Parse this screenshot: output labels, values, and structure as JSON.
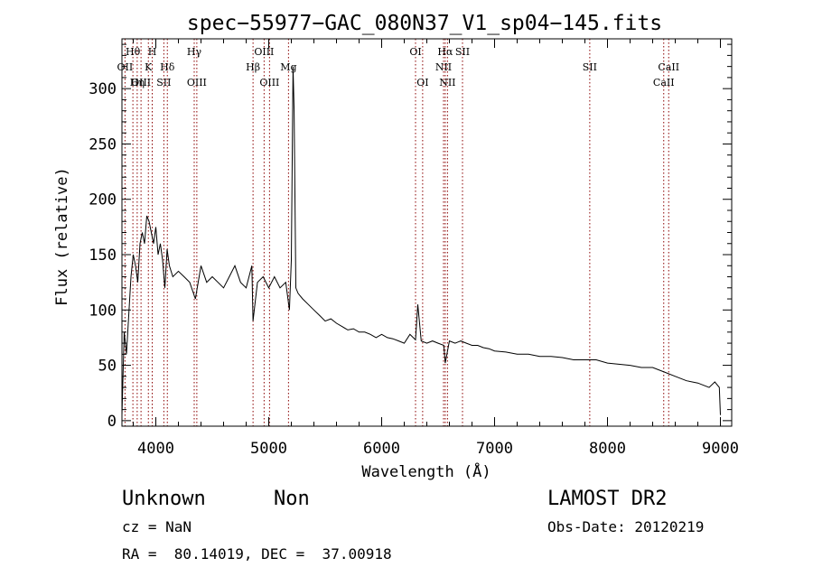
{
  "chart_data": {
    "type": "line",
    "title": "spec−55977−GAC_080N37_V1_sp04−145.fits",
    "xlabel": "Wavelength (Å)",
    "ylabel": "Flux (relative)",
    "xlim": [
      3700,
      9100
    ],
    "ylim": [
      -5,
      345
    ],
    "xticks": [
      4000,
      5000,
      6000,
      7000,
      8000,
      9000
    ],
    "yticks": [
      0,
      50,
      100,
      150,
      200,
      250,
      300
    ],
    "grid": false,
    "series": [
      {
        "x": [
          3700,
          3720,
          3740,
          3760,
          3780,
          3800,
          3820,
          3840,
          3860,
          3880,
          3900,
          3920,
          3940,
          3960,
          3980,
          4000,
          4020,
          4040,
          4060,
          4080,
          4100,
          4120,
          4150,
          4200,
          4250,
          4300,
          4350,
          4400,
          4450,
          4500,
          4550,
          4600,
          4650,
          4700,
          4750,
          4800,
          4850,
          4861,
          4900,
          4950,
          5000,
          5050,
          5100,
          5150,
          5183,
          5200,
          5215,
          5225,
          5240,
          5260,
          5300,
          5350,
          5400,
          5450,
          5500,
          5550,
          5600,
          5650,
          5700,
          5750,
          5800,
          5850,
          5900,
          5950,
          6000,
          6050,
          6100,
          6150,
          6200,
          6250,
          6300,
          6320,
          6350,
          6400,
          6450,
          6500,
          6550,
          6563,
          6600,
          6650,
          6700,
          6750,
          6800,
          6850,
          6900,
          6950,
          7000,
          7100,
          7200,
          7300,
          7400,
          7500,
          7600,
          7700,
          7800,
          7900,
          8000,
          8100,
          8200,
          8300,
          8400,
          8500,
          8600,
          8700,
          8800,
          8900,
          8950,
          8990,
          9000
        ],
        "values": [
          5,
          80,
          60,
          95,
          130,
          150,
          140,
          125,
          160,
          170,
          160,
          185,
          180,
          170,
          160,
          175,
          150,
          160,
          145,
          120,
          155,
          140,
          130,
          135,
          130,
          125,
          110,
          140,
          125,
          130,
          125,
          120,
          130,
          140,
          125,
          120,
          140,
          90,
          125,
          130,
          120,
          130,
          120,
          125,
          100,
          145,
          320,
          280,
          120,
          115,
          110,
          105,
          100,
          95,
          90,
          92,
          88,
          85,
          82,
          83,
          80,
          80,
          78,
          75,
          78,
          75,
          74,
          72,
          70,
          78,
          73,
          105,
          72,
          70,
          72,
          70,
          68,
          52,
          72,
          70,
          72,
          70,
          68,
          68,
          66,
          65,
          63,
          62,
          60,
          60,
          58,
          58,
          57,
          55,
          55,
          55,
          52,
          51,
          50,
          48,
          48,
          44,
          40,
          36,
          34,
          30,
          35,
          30,
          5
        ]
      }
    ],
    "lines": [
      {
        "label": "Hθ",
        "wavelength": 3797,
        "row": 1
      },
      {
        "label": "OII",
        "wavelength": 3727,
        "row": 2
      },
      {
        "label": "OIII",
        "wavelength": 3869,
        "row": 3
      },
      {
        "label": "Hη",
        "wavelength": 3835,
        "row": 3
      },
      {
        "label": "H",
        "wavelength": 3968,
        "row": 1
      },
      {
        "label": "K",
        "wavelength": 3934,
        "row": 2
      },
      {
        "label": "Hδ",
        "wavelength": 4102,
        "row": 2
      },
      {
        "label": "SII",
        "wavelength": 4071,
        "row": 3
      },
      {
        "label": "Hγ",
        "wavelength": 4340,
        "row": 1
      },
      {
        "label": "OIII",
        "wavelength": 4363,
        "row": 3
      },
      {
        "label": "OIII",
        "wavelength": 4959,
        "row": 1
      },
      {
        "label": "Hβ",
        "wavelength": 4861,
        "row": 2
      },
      {
        "label": "OIII",
        "wavelength": 5007,
        "row": 3
      },
      {
        "label": "Mg",
        "wavelength": 5175,
        "row": 2
      },
      {
        "label": "OI",
        "wavelength": 6300,
        "row": 1
      },
      {
        "label": "OI",
        "wavelength": 6363,
        "row": 3
      },
      {
        "label": "Hα",
        "wavelength": 6563,
        "row": 1
      },
      {
        "label": "SII",
        "wavelength": 6716,
        "row": 1
      },
      {
        "label": "NII",
        "wavelength": 6548,
        "row": 2
      },
      {
        "label": "NII",
        "wavelength": 6583,
        "row": 3
      },
      {
        "label": "SII",
        "wavelength": 7843,
        "row": 2
      },
      {
        "label": "CaII",
        "wavelength": 8542,
        "row": 2
      },
      {
        "label": "CaII",
        "wavelength": 8498,
        "row": 3
      }
    ]
  },
  "info": {
    "object_class": "Unknown",
    "object_subclass": "Non",
    "survey": "LAMOST DR2",
    "cz": "cz = NaN",
    "obs_date": "Obs-Date: 20120219",
    "coords": "RA =  80.14019, DEC =  37.00918"
  },
  "colors": {
    "axis": "#000000",
    "spectrum": "#000000",
    "line_markers": "#8b0000"
  }
}
